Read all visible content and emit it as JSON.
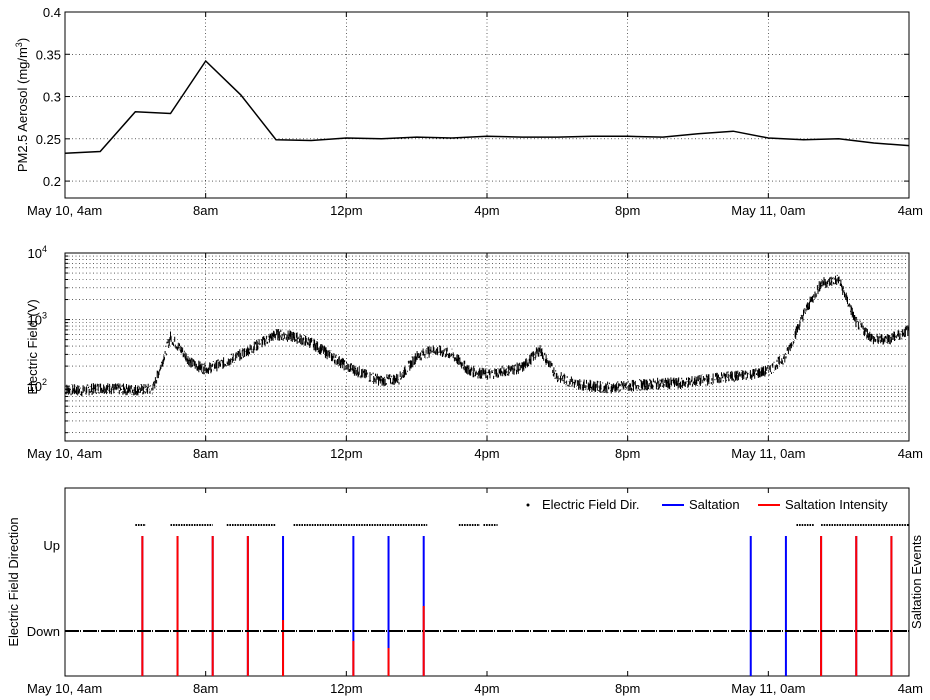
{
  "chart_data": [
    {
      "type": "line",
      "title": "",
      "xlabel": "",
      "ylabel": "PM2.5 Aerosol (mg/m",
      "ylabel_sup": "3",
      "ylabel_end": ")",
      "xlim": [
        0,
        24
      ],
      "ylim": [
        0.18,
        0.4
      ],
      "xticks": [
        0,
        4,
        8,
        12,
        16,
        20,
        24
      ],
      "xtick_labels": [
        "May 10, 4am",
        "8am",
        "12pm",
        "4pm",
        "8pm",
        "May 11, 0am",
        "4am"
      ],
      "yticks": [
        0.2,
        0.25,
        0.3,
        0.35,
        0.4
      ],
      "ytick_labels": [
        "0.2",
        "0.25",
        "0.3",
        "0.35",
        "0.4"
      ],
      "grid": true,
      "color": "#000000",
      "x": [
        0,
        1,
        2,
        3,
        4,
        5,
        6,
        7,
        8,
        9,
        10,
        11,
        12,
        13,
        14,
        15,
        16,
        17,
        18,
        19,
        20,
        21,
        22,
        23,
        24
      ],
      "y": [
        0.233,
        0.235,
        0.282,
        0.28,
        0.342,
        0.302,
        0.249,
        0.248,
        0.251,
        0.25,
        0.252,
        0.251,
        0.253,
        0.252,
        0.252,
        0.253,
        0.253,
        0.252,
        0.256,
        0.259,
        0.251,
        0.249,
        0.25,
        0.245,
        0.242
      ]
    },
    {
      "type": "line",
      "title": "",
      "xlabel": "",
      "ylabel": "Electric Field (V)",
      "yscale": "log",
      "xlim": [
        0,
        24
      ],
      "ylim": [
        15,
        10000
      ],
      "xticks": [
        0,
        4,
        8,
        12,
        16,
        20,
        24
      ],
      "xtick_labels": [
        "May 10, 4am",
        "8am",
        "12pm",
        "4pm",
        "8pm",
        "May 11, 0am",
        "4am"
      ],
      "ytick_values": [
        100,
        1000,
        10000
      ],
      "ytick_bases": [
        "10",
        "10",
        "10"
      ],
      "ytick_exps": [
        "2",
        "3",
        "4"
      ],
      "grid": true,
      "color": "#000000",
      "x": [
        0,
        0.5,
        1,
        1.5,
        2,
        2.5,
        3,
        3.3,
        3.6,
        4,
        4.5,
        5,
        5.5,
        6,
        6.5,
        7,
        7.5,
        8,
        8.5,
        9,
        9.5,
        10,
        10.5,
        11,
        11.5,
        12,
        12.5,
        13,
        13.5,
        14,
        14.5,
        15,
        15.5,
        16,
        16.5,
        17,
        17.5,
        18,
        18.5,
        19,
        19.5,
        20,
        20.5,
        21,
        21.5,
        22,
        22.5,
        23,
        23.5,
        24
      ],
      "y": [
        90,
        85,
        95,
        90,
        88,
        90,
        550,
        350,
        220,
        180,
        220,
        300,
        420,
        600,
        550,
        450,
        300,
        200,
        150,
        120,
        130,
        280,
        350,
        300,
        170,
        150,
        170,
        190,
        350,
        140,
        110,
        100,
        95,
        100,
        105,
        110,
        110,
        120,
        130,
        140,
        150,
        170,
        280,
        1200,
        3500,
        4000,
        900,
        500,
        520,
        700
      ]
    },
    {
      "type": "line",
      "title": "",
      "xlabel": "",
      "ylabel": "Electric Field Direction",
      "ylabel_right": "Saltation Events",
      "xlim": [
        0,
        24
      ],
      "xticks": [
        0,
        4,
        8,
        12,
        16,
        20,
        24
      ],
      "xtick_labels": [
        "May 10, 4am",
        "8am",
        "12pm",
        "4pm",
        "8pm",
        "May 11, 0am",
        "4am"
      ],
      "ytick_labels": [
        "Up",
        "Down"
      ],
      "legend_position": "top-right",
      "legend": [
        "Electric Field Dir.",
        "Saltation",
        "Saltation Intensity"
      ],
      "colors": {
        "direction": "#000000",
        "saltation": "#0000ff",
        "intensity": "#ff0000"
      },
      "up_segments": [
        [
          2.0,
          2.3
        ],
        [
          3.0,
          4.2
        ],
        [
          4.6,
          6.0
        ],
        [
          6.5,
          10.3
        ],
        [
          11.2,
          11.8
        ],
        [
          11.9,
          12.3
        ],
        [
          20.8,
          21.3
        ],
        [
          21.5,
          24.0
        ]
      ],
      "saltation_times": [
        2.2,
        3.2,
        4.2,
        5.2,
        6.2,
        8.2,
        9.2,
        10.2,
        19.5,
        20.5,
        21.5,
        22.5,
        23.5,
        24.5,
        25.5,
        26.5,
        27.5
      ],
      "saltation_intensity": [
        1.0,
        1.0,
        1.0,
        1.0,
        0.4,
        0.25,
        0.2,
        0.5,
        0.0,
        0.0,
        1.0,
        1.0,
        1.0,
        1.0,
        1.0,
        1.0,
        1.0
      ]
    }
  ]
}
